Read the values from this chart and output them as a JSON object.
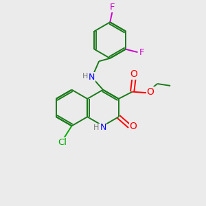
{
  "bg_color": "#ebebeb",
  "atom_colors": {
    "C": "#1a7a1a",
    "N": "#0000ff",
    "O": "#ff0000",
    "F": "#cc00cc",
    "Cl": "#00aa00",
    "H": "#7a7a7a",
    "bond": "#1a7a1a"
  },
  "lw": 1.4,
  "fs": 8.5
}
